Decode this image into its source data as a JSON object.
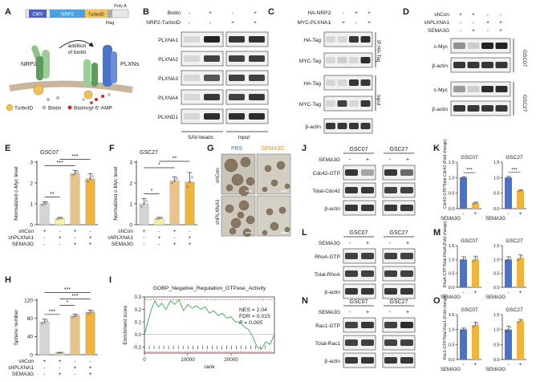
{
  "panels": {
    "A": {
      "letter": "A",
      "promoter": "CMV",
      "gene": "NRP2",
      "tag": "TurboID",
      "polya": "Poly A",
      "flag": "Flag",
      "receptor_left": "NRP2",
      "receptor_right": "PLXNs",
      "arrow_label_1": "addition",
      "arrow_label_2": "of biotin",
      "legend": [
        {
          "name": "TurboID",
          "color": "#f2c35b"
        },
        {
          "name": "Biotin",
          "color": "#b5b5b5"
        },
        {
          "name": "Biotinoyl-5'-AMP",
          "color": "#cc2a2a"
        }
      ]
    },
    "B": {
      "letter": "B",
      "rows": [
        {
          "label": "Biotin",
          "signs": [
            "-",
            "+",
            "-",
            "+"
          ]
        },
        {
          "label": "NRP2-TurboID",
          "signs": [
            "-",
            "-",
            "+",
            "+"
          ]
        }
      ],
      "bands": [
        "PLXNA1",
        "PLXNA2",
        "PLXNA3",
        "PLXNA4",
        "PLXND1"
      ],
      "group_left": "SAV-beads",
      "group_right": "Input"
    },
    "C": {
      "letter": "C",
      "rows": [
        {
          "label": "HA-NRP2",
          "signs": [
            "-",
            "-",
            "+",
            "+"
          ]
        },
        {
          "label": "MYC-PLXNA1",
          "signs": [
            "-",
            "+",
            "-",
            "+"
          ]
        }
      ],
      "bands": [
        "HA-Tag",
        "MYC-Tag",
        "HA-Tag",
        "MYC-Tag",
        "β-actin"
      ],
      "group_ip": "IP:HA-Tag",
      "group_input": "Input"
    },
    "D": {
      "letter": "D",
      "rows": [
        {
          "label": "shCon",
          "signs": [
            "+",
            "+",
            "-",
            "-"
          ]
        },
        {
          "label": "shPLXNA1",
          "signs": [
            "-",
            "-",
            "+",
            "+"
          ]
        },
        {
          "label": "SEMA3G",
          "signs": [
            "-",
            "+",
            "-",
            "+"
          ]
        }
      ],
      "bands": [
        "c-Myc",
        "β-actin",
        "c-Myc",
        "β-actin"
      ],
      "cell_lines": [
        "GSC07",
        "GSC27"
      ]
    },
    "E": {
      "letter": "E",
      "title": "GSC07",
      "ylabel": "Normalized c-Myc level"
    },
    "F": {
      "letter": "F",
      "title": "GSC27",
      "ylabel": "Normalized c-Myc level"
    },
    "G": {
      "letter": "G",
      "col_labels": [
        "PBS",
        "SEMA3G"
      ],
      "row_labels": [
        "shCon",
        "shPLXNA1"
      ]
    },
    "H": {
      "letter": "H",
      "ylabel": "Sphere number"
    },
    "I": {
      "letter": "I",
      "title": "GOBP_Negative_Regulation_GTPase_Activity",
      "ylabel": "Enrichment score",
      "xlabel": "rank",
      "nes": "NES = 2.04",
      "fdr": "FDR = 0.015",
      "pval": "P = 0.005"
    },
    "J": {
      "letter": "J",
      "cell_lines": [
        "GSC07",
        "GSC27"
      ],
      "treatment": "SEMA3G",
      "signs": [
        "-",
        "+",
        "-",
        "+"
      ],
      "bands": [
        "Cdc42-GTP",
        "Total-Cdc42",
        "β-actin"
      ]
    },
    "K": {
      "letter": "K",
      "ylabel": "Cdc42-GTP/Total-Cdc42 (Fold change)",
      "titles": [
        "GSC07",
        "GSC27"
      ],
      "sig": [
        "***",
        "***"
      ]
    },
    "L": {
      "letter": "L",
      "cell_lines": [
        "GSC07",
        "GSC27"
      ],
      "treatment": "SEMA3G",
      "signs": [
        "-",
        "+",
        "-",
        "+"
      ],
      "bands": [
        "RhoA-GTP",
        "Total-RhoA",
        "β-actin"
      ]
    },
    "M": {
      "letter": "M",
      "ylabel": "RhoA-GTP/Total-RhoA (Fold change)",
      "titles": [
        "GSC07",
        "GSC27"
      ]
    },
    "N": {
      "letter": "N",
      "cell_lines": [
        "GSC07",
        "GSC27"
      ],
      "treatment": "SEMA3G",
      "signs": [
        "-",
        "+",
        "-",
        "+"
      ],
      "bands": [
        "Rac1-GTP",
        "Total-Rac1",
        "β-actin"
      ]
    },
    "O": {
      "letter": "O",
      "ylabel": "Rac1-GTP/Total-Rac1 (Fold change)",
      "titles": [
        "GSC07",
        "GSC27"
      ]
    }
  },
  "chart_data": [
    {
      "id": "E",
      "type": "bar",
      "title": "GSC07",
      "ylabel": "Normalized c-Myc level",
      "ylim": [
        0,
        3
      ],
      "yticks": [
        0,
        1,
        2,
        3
      ],
      "values": [
        1.0,
        0.3,
        2.45,
        2.2
      ],
      "errors": [
        0.1,
        0.05,
        0.15,
        0.25
      ],
      "colors": [
        "#d4d4d4",
        "#f4f0a0",
        "#e6c48c",
        "#f0b43a"
      ],
      "row_labels": [
        "shCon",
        "shPLXNA1",
        "SEMA3G"
      ],
      "signs": [
        [
          "+",
          "-",
          "+",
          "-"
        ],
        [
          "-",
          "+",
          "-",
          "+"
        ],
        [
          "-",
          "-",
          "+",
          "+"
        ]
      ],
      "sig": [
        {
          "from": 0,
          "to": 1,
          "text": "**"
        },
        {
          "from": 0,
          "to": 2,
          "text": "***"
        },
        {
          "from": 1,
          "to": 3,
          "text": "***"
        }
      ]
    },
    {
      "id": "F",
      "type": "bar",
      "title": "GSC27",
      "ylabel": "Normalized c-Myc level",
      "ylim": [
        0,
        3
      ],
      "yticks": [
        0,
        1,
        2,
        3
      ],
      "values": [
        1.0,
        0.3,
        2.1,
        2.05
      ],
      "errors": [
        0.25,
        0.05,
        0.2,
        0.45
      ],
      "colors": [
        "#d4d4d4",
        "#f4f0a0",
        "#e6c48c",
        "#f0b43a"
      ],
      "row_labels": [
        "shCon",
        "shPLXNA1",
        "SEMA3G"
      ],
      "signs": [
        [
          "+",
          "-",
          "+",
          "-"
        ],
        [
          "-",
          "+",
          "-",
          "+"
        ],
        [
          "-",
          "-",
          "+",
          "+"
        ]
      ],
      "sig": [
        {
          "from": 0,
          "to": 1,
          "text": "*"
        },
        {
          "from": 0,
          "to": 2,
          "text": "*"
        },
        {
          "from": 1,
          "to": 3,
          "text": "**"
        }
      ]
    },
    {
      "id": "H",
      "type": "bar",
      "ylabel": "Sphere number",
      "ylim": [
        0,
        120
      ],
      "yticks": [
        0,
        40,
        80,
        120
      ],
      "values": [
        72,
        4,
        85,
        93
      ],
      "errors": [
        6,
        1,
        4,
        5
      ],
      "colors": [
        "#d4d4d4",
        "#f4f0a0",
        "#e6c48c",
        "#f0b43a"
      ],
      "row_labels": [
        "shCon",
        "shPLXNA1",
        "SEMA3G"
      ],
      "signs": [
        [
          "+",
          "+",
          "-",
          "-"
        ],
        [
          "-",
          "-",
          "+",
          "+"
        ],
        [
          "-",
          "+",
          "-",
          "+"
        ]
      ],
      "sig": [
        {
          "from": 0,
          "to": 1,
          "text": "***"
        },
        {
          "from": 1,
          "to": 2,
          "text": "*"
        },
        {
          "from": 1,
          "to": 3,
          "text": "***"
        },
        {
          "from": 0,
          "to": 3,
          "text": "***"
        }
      ]
    },
    {
      "id": "I",
      "type": "line",
      "title": "GOBP_Negative_Regulation_GTPase_Activity",
      "xlabel": "rank",
      "ylabel": "Enrichment score",
      "xlim": [
        0,
        30000
      ],
      "ylim": [
        -0.15,
        0.3
      ],
      "xticks": [
        0,
        10000,
        20000
      ],
      "yticks": [
        -0.1,
        0.0,
        0.1,
        0.2,
        0.3
      ],
      "x": [
        0,
        800,
        1600,
        2400,
        3200,
        4000,
        5000,
        6000,
        7000,
        8000,
        9000,
        10000,
        11000,
        12000,
        13000,
        14000,
        15000,
        16000,
        17000,
        18000,
        19000,
        20000,
        21000,
        22000,
        23000,
        24000,
        25000,
        26000,
        27000,
        28000,
        29000,
        30000
      ],
      "y": [
        0.0,
        0.1,
        0.2,
        0.27,
        0.22,
        0.25,
        0.2,
        0.27,
        0.24,
        0.28,
        0.19,
        0.24,
        0.21,
        0.23,
        0.2,
        0.22,
        0.17,
        0.19,
        0.15,
        0.17,
        0.13,
        0.14,
        0.1,
        0.1,
        0.06,
        0.04,
        -0.02,
        -0.1,
        -0.12,
        -0.06,
        -0.08,
        0.0
      ]
    },
    {
      "id": "K1",
      "type": "bar",
      "title": "GSC07",
      "categories": [
        "-",
        "+"
      ],
      "values": [
        1.0,
        0.18
      ],
      "errors": [
        0.03,
        0.03
      ],
      "ylim": [
        0,
        1.5
      ],
      "yticks": [
        0.0,
        0.5,
        1.0,
        1.5
      ],
      "colors": [
        "#4a72c6",
        "#f0b43a"
      ],
      "xrow": "SEMA3G",
      "sig": "***"
    },
    {
      "id": "K2",
      "type": "bar",
      "title": "GSC27",
      "categories": [
        "-",
        "+"
      ],
      "values": [
        1.0,
        0.58
      ],
      "errors": [
        0.04,
        0.03
      ],
      "ylim": [
        0,
        1.5
      ],
      "yticks": [
        0.0,
        0.5,
        1.0,
        1.5
      ],
      "colors": [
        "#4a72c6",
        "#f0b43a"
      ],
      "xrow": "SEMA3G",
      "sig": "***"
    },
    {
      "id": "M1",
      "type": "bar",
      "title": "GSC07",
      "categories": [
        "-",
        "+"
      ],
      "values": [
        1.0,
        1.0
      ],
      "errors": [
        0.1,
        0.12
      ],
      "ylim": [
        0,
        1.5
      ],
      "yticks": [
        0.0,
        0.5,
        1.0,
        1.5
      ],
      "colors": [
        "#4a72c6",
        "#f0b43a"
      ],
      "xrow": "SEMA3G"
    },
    {
      "id": "M2",
      "type": "bar",
      "title": "GSC27",
      "categories": [
        "-",
        "+"
      ],
      "values": [
        1.0,
        1.05
      ],
      "errors": [
        0.1,
        0.12
      ],
      "ylim": [
        0,
        1.5
      ],
      "yticks": [
        0.0,
        0.5,
        1.0,
        1.5
      ],
      "colors": [
        "#4a72c6",
        "#f0b43a"
      ],
      "xrow": "SEMA3G"
    },
    {
      "id": "O1",
      "type": "bar",
      "title": "GSC07",
      "categories": [
        "-",
        "+"
      ],
      "values": [
        1.0,
        1.15
      ],
      "errors": [
        0.05,
        0.1
      ],
      "ylim": [
        0,
        1.5
      ],
      "yticks": [
        0.0,
        0.5,
        1.0,
        1.5
      ],
      "colors": [
        "#4a72c6",
        "#f0b43a"
      ],
      "xrow": "SEMA3G"
    },
    {
      "id": "O2",
      "type": "bar",
      "title": "GSC27",
      "categories": [
        "-",
        "+"
      ],
      "values": [
        1.0,
        1.28
      ],
      "errors": [
        0.12,
        0.06
      ],
      "ylim": [
        0,
        1.5
      ],
      "yticks": [
        0.0,
        0.5,
        1.0,
        1.5
      ],
      "colors": [
        "#4a72c6",
        "#f0b43a"
      ],
      "xrow": "SEMA3G"
    }
  ]
}
